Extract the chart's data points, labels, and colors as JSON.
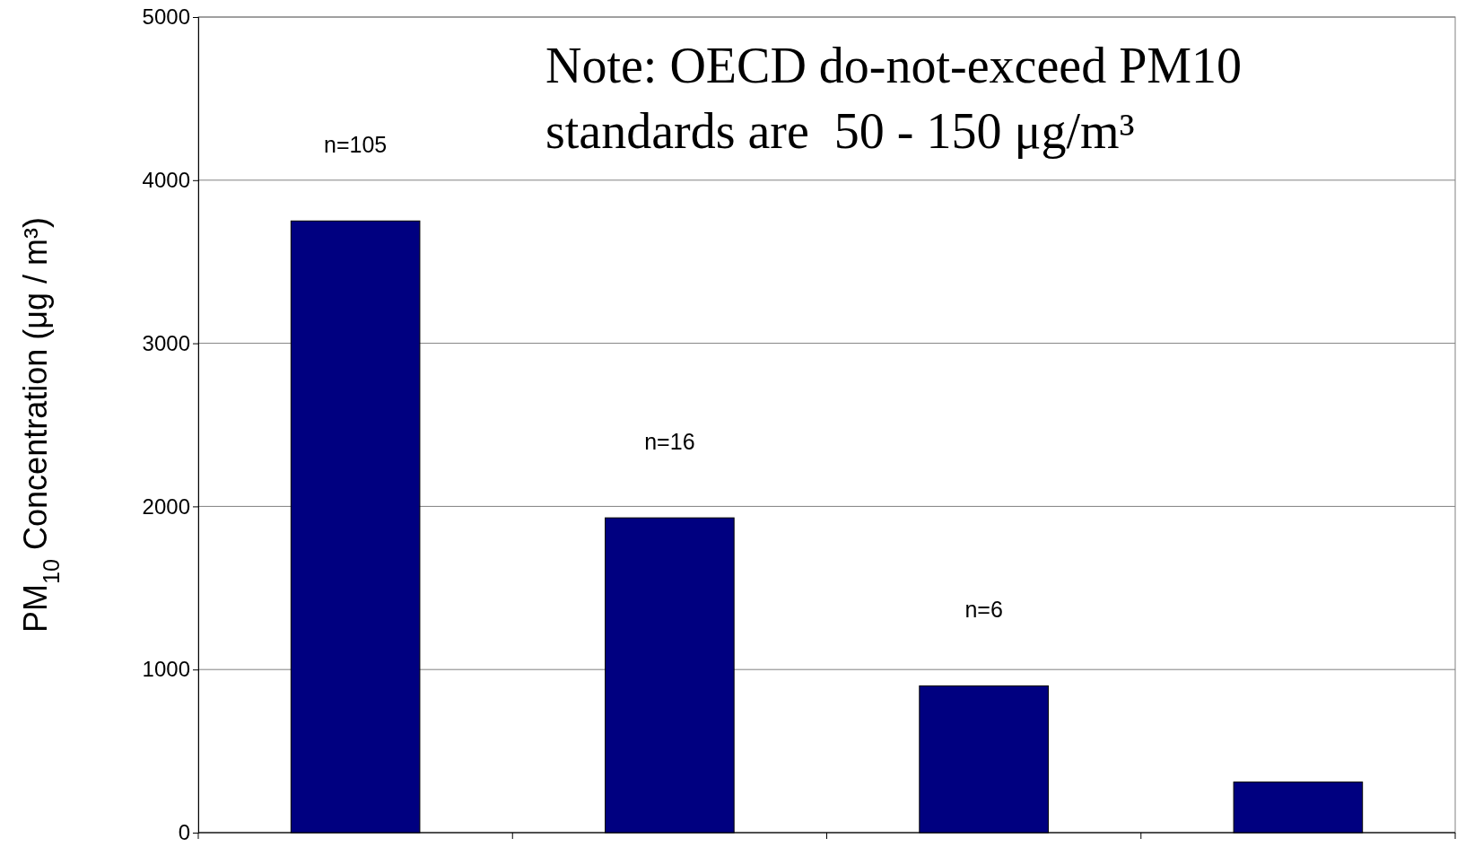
{
  "chart_data": {
    "type": "bar",
    "ylabel": "PM$_{10}$ Concentration (μg / m³)",
    "categories": [
      null,
      null,
      null,
      null
    ],
    "values": [
      3750,
      1930,
      900,
      310
    ],
    "color": "#000080",
    "ylim": [
      0,
      5000
    ],
    "yticks": [
      0,
      1000,
      2000,
      3000,
      4000,
      5000
    ],
    "grid": "y",
    "annotations": [
      "Note: OECD do-not-exceed PM10 standards are  50 - 150 μg/m³",
      "n=105",
      "n=16",
      "n=6"
    ]
  }
}
